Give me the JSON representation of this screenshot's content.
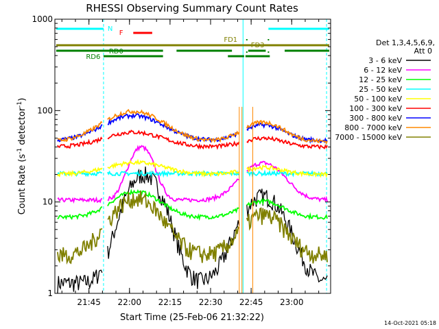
{
  "chart_data": {
    "type": "line",
    "title": "RHESSI Observing Summary Count Rates",
    "xlabel": "Start Time (25-Feb-06 21:32:22)",
    "ylabel_main": "Count Rate (s",
    "ylabel_sup1": "-1",
    "ylabel_mid": " detector",
    "ylabel_sup2": "-1",
    "ylabel_end": ")",
    "ylog": true,
    "ylim": [
      1,
      1000
    ],
    "xlim_minutes": [
      0,
      102
    ],
    "x_ticks": [
      {
        "label": "21:45",
        "minute": 12.6
      },
      {
        "label": "22:00",
        "minute": 27.6
      },
      {
        "label": "22:15",
        "minute": 42.6
      },
      {
        "label": "22:30",
        "minute": 57.6
      },
      {
        "label": "22:45",
        "minute": 72.6
      },
      {
        "label": "23:00",
        "minute": 87.6
      }
    ],
    "y_ticks": [
      {
        "label": "1",
        "value": 1
      },
      {
        "label": "10",
        "value": 10
      },
      {
        "label": "100",
        "value": 100
      },
      {
        "label": "1000",
        "value": 1000
      }
    ],
    "legend_title": [
      "Det 1,3,4,5,6,9,",
      "Att 0"
    ],
    "series": [
      {
        "name": "3 - 6 keV",
        "color": "#000000",
        "base": 1.3,
        "peak": 20,
        "peak_min": 33,
        "sigma": 6
      },
      {
        "name": "6 - 12 keV",
        "color": "#ff00ff",
        "base": 10.5,
        "peak": 40,
        "peak_min": 32,
        "sigma": 4
      },
      {
        "name": "12 - 25 keV",
        "color": "#00ff00",
        "base": 6.8,
        "peak": 13,
        "peak_min": 30,
        "sigma": 8
      },
      {
        "name": "25 - 50 keV",
        "color": "#00ffff",
        "base": 20.5,
        "peak": 16,
        "peak_min": 30,
        "sigma": 8
      },
      {
        "name": "50 - 100 keV",
        "color": "#ffff00",
        "base": 20,
        "peak": 27,
        "peak_min": 30,
        "sigma": 10
      },
      {
        "name": "100 - 300 keV",
        "color": "#ff0000",
        "base": 40,
        "peak": 58,
        "peak_min": 29,
        "sigma": 10
      },
      {
        "name": "300 - 800 keV",
        "color": "#0000ff",
        "base": 47,
        "peak": 88,
        "peak_min": 29,
        "sigma": 10
      },
      {
        "name": "800 - 7000 keV",
        "color": "#ff8800",
        "base": 46,
        "peak": 98,
        "peak_min": 29,
        "sigma": 10
      },
      {
        "name": "7000 - 15000 keV",
        "color": "#808000",
        "base": 2.6,
        "peak": 11,
        "peak_min": 30,
        "sigma": 8
      }
    ],
    "night_boundaries_minutes": [
      0,
      18.0,
      69.6,
      100.5
    ],
    "annotations": {
      "N_label": "N",
      "F_label": "F",
      "RD0_label": "RD0",
      "RD6_label": "RD6",
      "FD1_label": "FD1",
      "FD3_label": "FD3"
    },
    "timestamp": "14-Oct-2021 05:18"
  },
  "colors": {
    "night_line": "#00ffff",
    "flare_bar": "#ff0000",
    "saa_bar": "#808000",
    "decimation_bar": "#008000"
  }
}
